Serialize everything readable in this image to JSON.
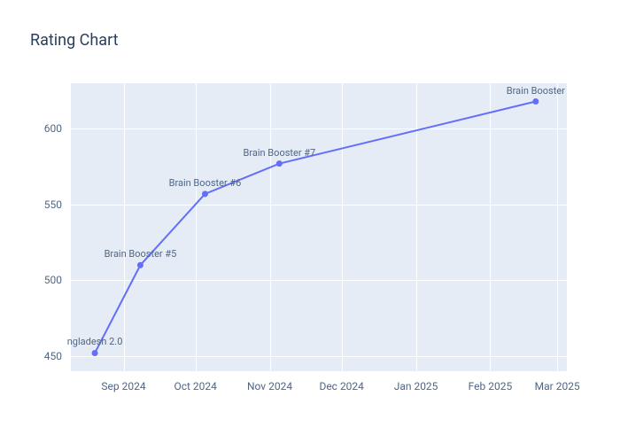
{
  "chart": {
    "type": "line",
    "title": "Rating Chart",
    "title_color": "#2a3f5f",
    "title_fontsize": 18,
    "background_color": "#ffffff",
    "plot_background": "#e5ecf6",
    "grid_color": "#ffffff",
    "axis_label_color": "#506784",
    "axis_label_fontsize": 12,
    "point_label_fontsize": 11,
    "line_color": "#636efa",
    "marker_color": "#636efa",
    "line_width": 2,
    "marker_size": 3,
    "x_axis": {
      "type": "date",
      "min": "2024-08-10",
      "max": "2025-03-05",
      "ticks": [
        {
          "date": "2024-09-01",
          "label": "Sep 2024"
        },
        {
          "date": "2024-10-01",
          "label": "Oct 2024"
        },
        {
          "date": "2024-11-01",
          "label": "Nov 2024"
        },
        {
          "date": "2024-12-01",
          "label": "Dec 2024"
        },
        {
          "date": "2025-01-01",
          "label": "Jan 2025"
        },
        {
          "date": "2025-02-01",
          "label": "Feb 2025"
        },
        {
          "date": "2025-03-01",
          "label": "Mar 2025"
        }
      ]
    },
    "y_axis": {
      "min": 440,
      "max": 630,
      "ticks": [
        450,
        500,
        550,
        600
      ]
    },
    "data_points": [
      {
        "date": "2024-08-20",
        "value": 452,
        "label": "ngladesh 2.0"
      },
      {
        "date": "2024-09-08",
        "value": 510,
        "label": "Brain Booster #5"
      },
      {
        "date": "2024-10-05",
        "value": 557,
        "label": "Brain Booster #6"
      },
      {
        "date": "2024-11-05",
        "value": 577,
        "label": "Brain Booster #7"
      },
      {
        "date": "2025-02-20",
        "value": 618,
        "label": "Brain Booster"
      }
    ]
  }
}
